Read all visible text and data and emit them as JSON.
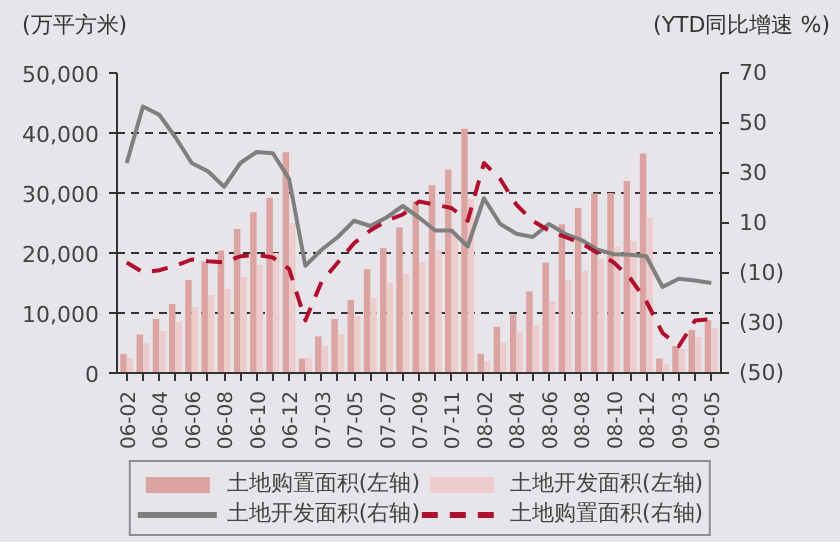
{
  "chart_data": {
    "type": "bar",
    "ylabel": "(万平方米)",
    "y2label": "(YTD同比增速 %)",
    "categories": [
      "06-02",
      null,
      "06-04",
      null,
      "06-06",
      null,
      "06-08",
      null,
      "06-10",
      null,
      "06-12",
      null,
      "07-03",
      null,
      "07-05",
      null,
      "07-07",
      null,
      "07-09",
      null,
      "07-11",
      null,
      "08-02",
      null,
      "08-04",
      null,
      "08-06",
      null,
      "08-08",
      null,
      "08-10",
      null,
      "08-12",
      null,
      "09-03",
      null,
      "09-05"
    ],
    "series": [
      {
        "name": "土地购置面积(左轴)",
        "color": "#dca3a3",
        "values": [
          3200,
          6400,
          9000,
          11500,
          15500,
          18600,
          20400,
          24000,
          26800,
          29200,
          36800,
          2400,
          6100,
          9000,
          12200,
          17300,
          20800,
          24300,
          28600,
          31300,
          33900,
          40700,
          3200,
          7700,
          9800,
          13600,
          18400,
          24800,
          27500,
          29900,
          30000,
          32000,
          36600,
          2400,
          4500,
          7200,
          8800
        ]
      },
      {
        "name": "土地开发面积(左轴)",
        "color": "#edcccc",
        "values": [
          2500,
          5000,
          7000,
          8500,
          11000,
          13000,
          14000,
          16000,
          18000,
          20000,
          25000,
          2600,
          4500,
          6500,
          9500,
          12500,
          15000,
          16500,
          18500,
          20500,
          23000,
          29000,
          2000,
          5000,
          6800,
          8000,
          12000,
          15500,
          17000,
          19000,
          21000,
          22000,
          25900,
          1500,
          4000,
          6000,
          7500
        ]
      },
      {
        "name": "土地开发面积(右轴)",
        "type": "line",
        "axis": "y2",
        "color": "#7f7f7f",
        "line_style": "solid",
        "values": [
          34,
          56.6,
          53.3,
          44.3,
          34,
          30.7,
          24.5,
          34,
          38.4,
          37.9,
          27.6,
          -7.1,
          -0.7,
          4.4,
          10.9,
          8.8,
          12.2,
          16.8,
          12.2,
          7,
          7,
          0.6,
          19.9,
          9.6,
          5.7,
          4.4,
          9.6,
          5.7,
          3.2,
          -0.7,
          -2.5,
          -2.7,
          -3.3,
          -15.6,
          -12.3,
          -13,
          -14
        ]
      },
      {
        "name": "土地购置面积(右轴)",
        "type": "line",
        "axis": "y2",
        "color": "#b0102e",
        "line_style": "dashed",
        "values": [
          -5.8,
          -9.7,
          -8.9,
          -7.1,
          -4.6,
          -5.3,
          -5.8,
          -3.3,
          -2.7,
          -3.8,
          -8.4,
          -29,
          -13.5,
          -5.8,
          1.9,
          7,
          10.9,
          13.4,
          18.6,
          17.3,
          16,
          10.9,
          34,
          27.6,
          17.3,
          10.9,
          7,
          4.4,
          1.9,
          -2,
          -5.8,
          -12,
          -21.3,
          -34,
          -39.3,
          -29,
          -28.5
        ]
      }
    ],
    "ylim": [
      0,
      50000
    ],
    "yticks": [
      {
        "value": 0,
        "label": "0"
      },
      {
        "value": 10000,
        "label": "10,000"
      },
      {
        "value": 20000,
        "label": "20,000"
      },
      {
        "value": 30000,
        "label": "30,000"
      },
      {
        "value": 40000,
        "label": "40,000"
      },
      {
        "value": 50000,
        "label": "50,000"
      }
    ],
    "y2lim": [
      -50,
      70
    ],
    "y2ticks": [
      {
        "value": -50,
        "label": "(50)"
      },
      {
        "value": -30,
        "label": "(30)"
      },
      {
        "value": -10,
        "label": "(10)"
      },
      10,
      30,
      50,
      70
    ],
    "grid": "y",
    "legend": "bottom",
    "marker": "none"
  }
}
